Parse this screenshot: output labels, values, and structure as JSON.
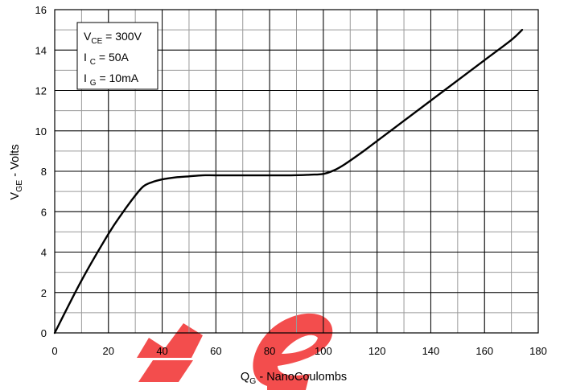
{
  "chart_data": {
    "type": "line",
    "xlabel": {
      "main": "Q",
      "sub": "G",
      "rest": " - NanoCoulombs"
    },
    "ylabel": {
      "main": "V",
      "sub": "GE",
      "rest": " - Volts"
    },
    "xlim": [
      0,
      180
    ],
    "ylim": [
      0,
      16
    ],
    "x_ticks": [
      0,
      20,
      40,
      60,
      80,
      100,
      120,
      140,
      160,
      180
    ],
    "y_ticks": [
      0,
      2,
      4,
      6,
      8,
      10,
      12,
      14,
      16
    ],
    "grid": true,
    "legend_box": [
      {
        "main": "V",
        "sub": "CE",
        "rest": " = 300V"
      },
      {
        "main": "I ",
        "sub": "C",
        "rest": " = 50A"
      },
      {
        "main": "I ",
        "sub": "G",
        "rest": " = 10mA"
      }
    ],
    "series": [
      {
        "x": [
          0,
          10,
          20,
          25,
          30,
          33,
          36,
          40,
          45,
          50,
          55,
          60,
          70,
          80,
          88,
          95,
          100,
          104,
          108,
          115,
          120,
          130,
          140,
          150,
          160,
          170,
          174
        ],
        "y": [
          0,
          2.6,
          4.9,
          5.9,
          6.8,
          7.25,
          7.45,
          7.6,
          7.7,
          7.75,
          7.8,
          7.8,
          7.8,
          7.8,
          7.8,
          7.83,
          7.87,
          8.05,
          8.35,
          9.0,
          9.5,
          10.5,
          11.5,
          12.5,
          13.5,
          14.5,
          15.0
        ],
        "color": "#000000"
      }
    ],
    "watermark": "te"
  }
}
